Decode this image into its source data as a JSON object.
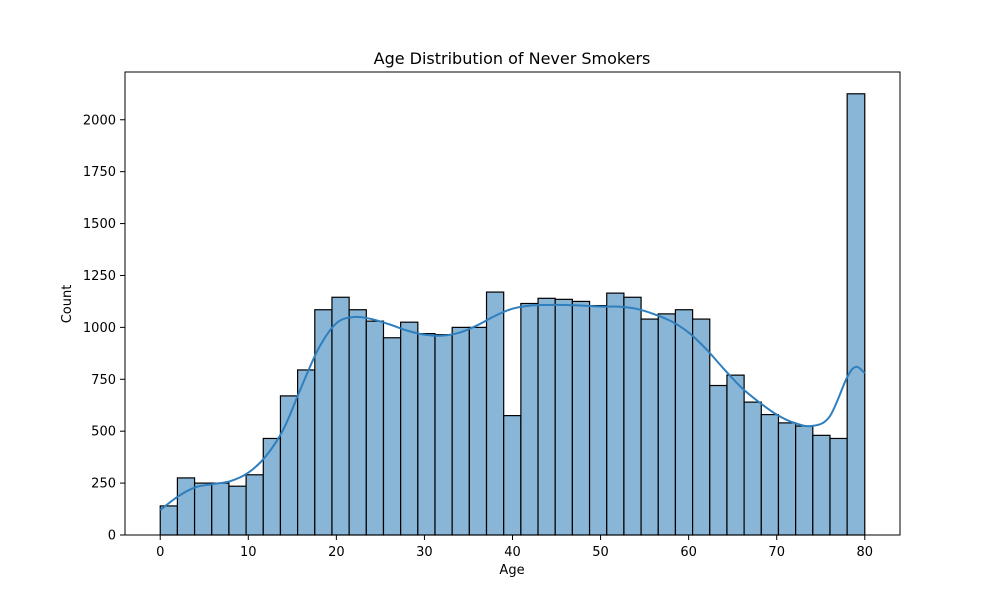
{
  "chart_data": {
    "type": "histogram",
    "title": "Age Distribution of Never Smokers",
    "xlabel": "Age",
    "ylabel": "Count",
    "xlim": [
      -4.0,
      84.0
    ],
    "ylim": [
      0,
      2230
    ],
    "xticks": [
      0,
      10,
      20,
      30,
      40,
      50,
      60,
      70,
      80
    ],
    "yticks": [
      0,
      250,
      500,
      750,
      1000,
      1250,
      1500,
      1750,
      2000
    ],
    "bin_edges": [
      0.0,
      1.95,
      3.9,
      5.85,
      7.8,
      9.75,
      11.7,
      13.65,
      15.6,
      17.55,
      19.5,
      21.45,
      23.4,
      25.35,
      27.3,
      29.25,
      31.2,
      33.15,
      35.1,
      37.05,
      39.0,
      40.95,
      42.9,
      44.85,
      46.8,
      48.75,
      50.7,
      52.65,
      54.6,
      56.55,
      58.5,
      60.45,
      62.4,
      64.35,
      66.3,
      68.25,
      70.2,
      72.15,
      74.1,
      76.05,
      78.0,
      80.0
    ],
    "counts": [
      140,
      275,
      250,
      250,
      235,
      290,
      465,
      670,
      795,
      1085,
      1145,
      1085,
      1030,
      950,
      1025,
      970,
      965,
      1000,
      1000,
      1170,
      575,
      1115,
      1140,
      1135,
      1125,
      1105,
      1165,
      1145,
      1040,
      1065,
      1085,
      1040,
      720,
      770,
      640,
      580,
      540,
      525,
      480,
      465,
      2125
    ],
    "kde": {
      "x": [
        0,
        2,
        4,
        6,
        8,
        10,
        12,
        14,
        16,
        18,
        20,
        22,
        24,
        26,
        28,
        30,
        32,
        34,
        36,
        38,
        40,
        42,
        44,
        46,
        48,
        50,
        52,
        54,
        56,
        58,
        60,
        62,
        64,
        66,
        68,
        70,
        72,
        74,
        76,
        78,
        79,
        80
      ],
      "y": [
        120,
        185,
        230,
        245,
        260,
        300,
        380,
        510,
        710,
        900,
        1020,
        1050,
        1040,
        1015,
        985,
        965,
        960,
        975,
        1010,
        1055,
        1090,
        1105,
        1108,
        1108,
        1105,
        1100,
        1100,
        1090,
        1065,
        1030,
        975,
        895,
        800,
        710,
        640,
        580,
        540,
        525,
        570,
        760,
        810,
        780
      ]
    },
    "colors": {
      "bar_fill": "#89b6d6",
      "bar_edge": "#000000",
      "kde_line": "#2f7fbf"
    },
    "grid": false,
    "legend": "none"
  }
}
